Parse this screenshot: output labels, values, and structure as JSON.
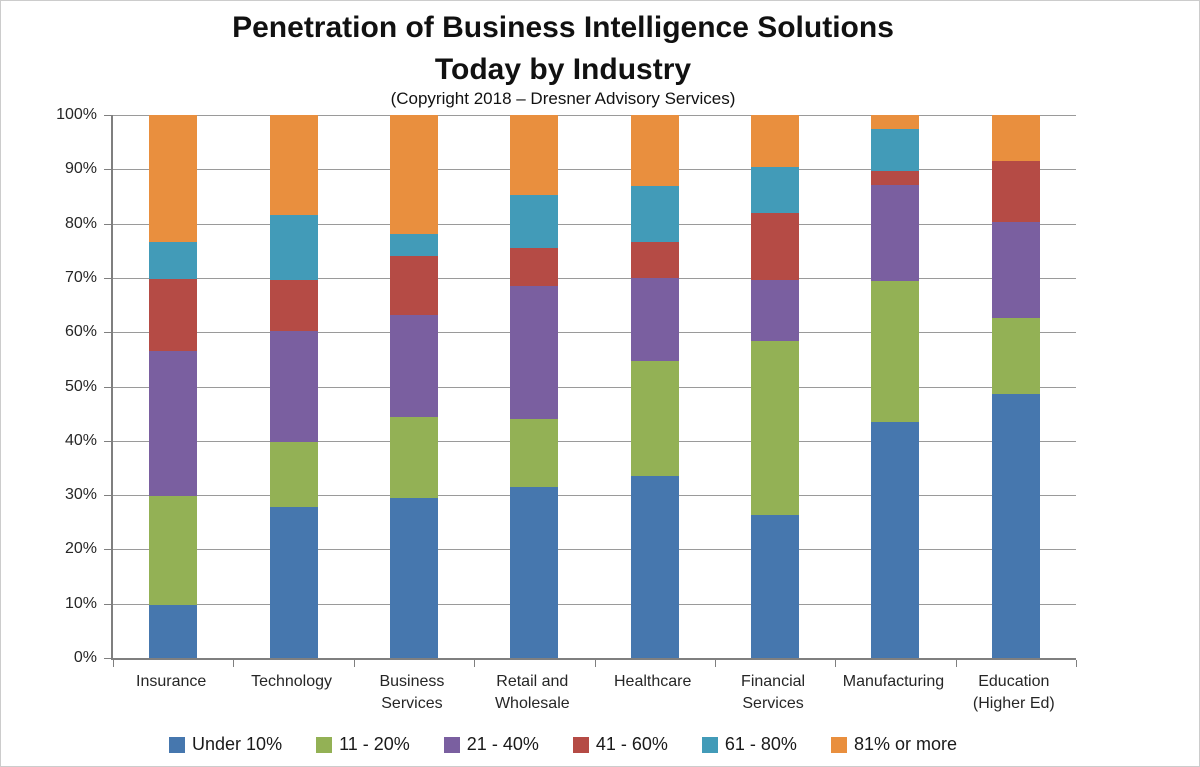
{
  "chart_data": {
    "type": "bar",
    "variant": "stacked-100-percent-column",
    "title": "Penetration of Business Intelligence Solutions Today by Industry",
    "title_lines": [
      "Penetration of Business Intelligence Solutions",
      "Today by Industry"
    ],
    "subtitle": "(Copyright 2018 – Dresner Advisory Services)",
    "categories": [
      "Insurance",
      "Technology",
      "Business\nServices",
      "Retail and\nWholesale",
      "Healthcare",
      "Financial\nServices",
      "Manufacturing",
      "Education\n(Higher Ed)"
    ],
    "series": [
      {
        "name": "Under 10%",
        "color": "#4677AE",
        "values": [
          9.8,
          27.8,
          29.5,
          31.5,
          33.6,
          26.3,
          43.5,
          48.6
        ]
      },
      {
        "name": "11 - 20%",
        "color": "#93B155",
        "values": [
          20.0,
          12.0,
          14.9,
          12.6,
          21.1,
          32.0,
          26.0,
          14.1
        ]
      },
      {
        "name": "21 - 40%",
        "color": "#7A5FA0",
        "values": [
          26.8,
          20.5,
          18.7,
          24.4,
          15.3,
          11.3,
          17.6,
          17.6
        ]
      },
      {
        "name": "41 - 60%",
        "color": "#B54B45",
        "values": [
          13.2,
          9.4,
          11.0,
          7.1,
          6.7,
          12.3,
          2.6,
          11.3
        ]
      },
      {
        "name": "61 - 80%",
        "color": "#429BB8",
        "values": [
          6.9,
          11.8,
          3.9,
          9.7,
          10.3,
          8.5,
          7.8,
          0
        ]
      },
      {
        "name": "81% or more",
        "color": "#E98F3E",
        "values": [
          23.3,
          18.5,
          22.0,
          14.7,
          13.0,
          9.6,
          2.5,
          8.4
        ]
      }
    ],
    "y_axis": {
      "min": 0,
      "max": 100,
      "step": 10,
      "ticks": [
        {
          "value": 0,
          "label": "0%"
        },
        {
          "value": 10,
          "label": "10%"
        },
        {
          "value": 20,
          "label": "20%"
        },
        {
          "value": 30,
          "label": "30%"
        },
        {
          "value": 40,
          "label": "40%"
        },
        {
          "value": 50,
          "label": "50%"
        },
        {
          "value": 60,
          "label": "60%"
        },
        {
          "value": 70,
          "label": "70%"
        },
        {
          "value": 80,
          "label": "80%"
        },
        {
          "value": 90,
          "label": "90%"
        },
        {
          "value": 100,
          "label": "100%"
        }
      ],
      "grid": true
    },
    "legend_position": "bottom"
  },
  "style": {
    "axis_color": "#7f7f7f",
    "gridline_color": "#9a9a9a",
    "text_color": "#262626",
    "background": "#ffffff"
  }
}
